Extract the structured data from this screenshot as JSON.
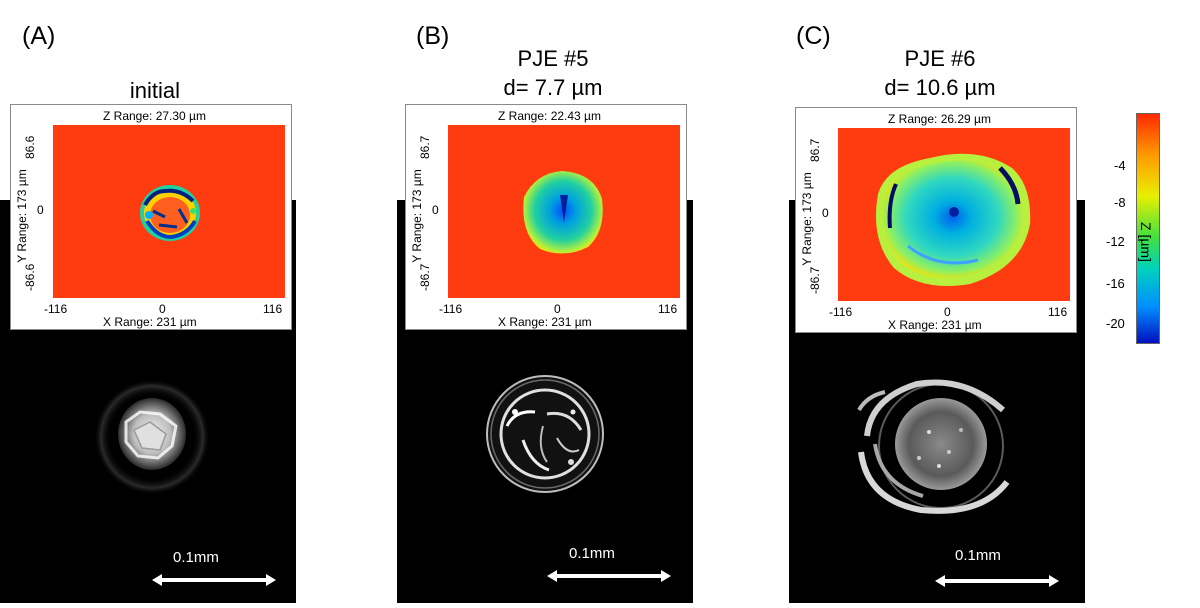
{
  "panels": [
    {
      "label": "(A)",
      "title_line1": "",
      "title_line2": "initial",
      "z_range": "Z Range:  27.30 µm",
      "y_range": "Y Range:  173 µm",
      "y_ticks": [
        "86.6",
        "0",
        "-86.6"
      ],
      "x_ticks": [
        "-116",
        "0",
        "116"
      ],
      "x_range": "X Range:   231 µm",
      "scale_label": "0.1mm"
    },
    {
      "label": "(B)",
      "title_line1": "PJE #5",
      "title_line2": "d= 7.7 µm",
      "z_range": "Z Range:  22.43 µm",
      "y_range": "Y Range:  173 µm",
      "y_ticks": [
        "86.7",
        "0",
        "-86.7"
      ],
      "x_ticks": [
        "-116",
        "0",
        "116"
      ],
      "x_range": "X Range:   231 µm",
      "scale_label": "0.1mm"
    },
    {
      "label": "(C)",
      "title_line1": "PJE #6",
      "title_line2": "d= 10.6 µm",
      "z_range": "Z Range:  26.29 µm",
      "y_range": "Y Range:  173 µm",
      "y_ticks": [
        "86.7",
        "0",
        "-86.7"
      ],
      "x_ticks": [
        "-116",
        "0",
        "116"
      ],
      "x_range": "X Range:   231 µm",
      "scale_label": "0.1mm"
    }
  ],
  "colorbar": {
    "label": "Z [µm]",
    "ticks": [
      "-4",
      "-8",
      "-12",
      "-16",
      "-20"
    ],
    "colors": [
      "#ff2a00",
      "#ff9a00",
      "#e8f000",
      "#40e040",
      "#00d0c0",
      "#0090ff",
      "#0010c0"
    ]
  }
}
